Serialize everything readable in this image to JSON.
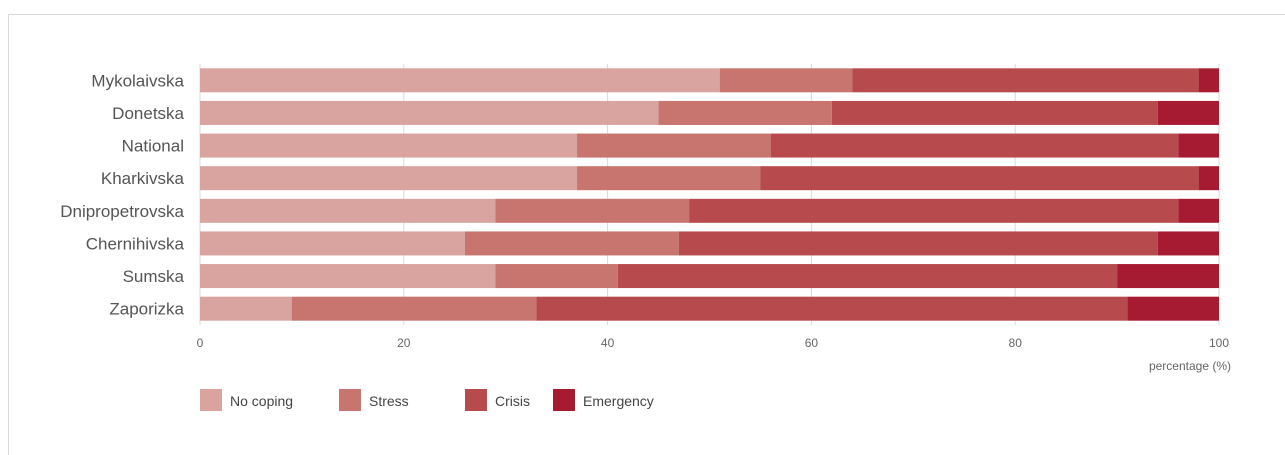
{
  "chart_data": {
    "type": "bar",
    "orientation": "horizontal",
    "stacked": true,
    "categories": [
      "Mykolaivska",
      "Donetska",
      "National",
      "Kharkivska",
      "Dnipropetrovska",
      "Chernihivska",
      "Sumska",
      "Zaporizka"
    ],
    "series": [
      {
        "name": "No coping",
        "color": "#d9a39f",
        "values": [
          51,
          45,
          37,
          37,
          29,
          26,
          29,
          9
        ]
      },
      {
        "name": "Stress",
        "color": "#c8746f",
        "values": [
          13,
          17,
          19,
          18,
          19,
          21,
          12,
          24
        ]
      },
      {
        "name": "Crisis",
        "color": "#b74a4d",
        "values": [
          34,
          32,
          40,
          43,
          48,
          47,
          49,
          58
        ]
      },
      {
        "name": "Emergency",
        "color": "#a71b32",
        "values": [
          2,
          6,
          4,
          2,
          4,
          6,
          10,
          9
        ]
      }
    ],
    "xlim": [
      0,
      100
    ],
    "xticks": [
      0,
      20,
      40,
      60,
      80,
      100
    ],
    "xlabel": "percentage (%)",
    "grid": "vertical",
    "legend": "bottom-left"
  }
}
